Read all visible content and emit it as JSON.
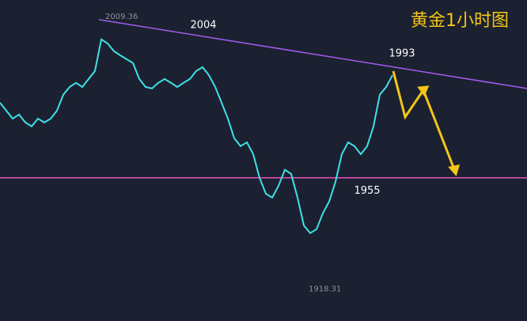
{
  "chart_data": {
    "type": "line",
    "title": "黄金1小时图",
    "values": [
      1981.3,
      1978.6,
      1975.9,
      1977.3,
      1974.6,
      1973.3,
      1975.9,
      1974.6,
      1975.9,
      1978.6,
      1984.0,
      1986.6,
      1988.0,
      1986.6,
      1989.3,
      1992.0,
      2002.7,
      2001.3,
      1998.7,
      1997.3,
      1996.0,
      1994.7,
      1989.3,
      1986.6,
      1986.1,
      1988.0,
      1989.3,
      1988.0,
      1986.6,
      1988.0,
      1989.3,
      1992.0,
      1993.3,
      1990.6,
      1986.6,
      1981.3,
      1975.9,
      1969.3,
      1966.6,
      1967.9,
      1963.9,
      1955.9,
      1950.5,
      1949.2,
      1953.2,
      1958.6,
      1957.2,
      1949.2,
      1939.8,
      1937.2,
      1938.5,
      1943.9,
      1947.9,
      1954.6,
      1963.9,
      1967.9,
      1966.6,
      1963.9,
      1966.6,
      1973.3,
      1984.0,
      1986.6,
      1990.6
    ],
    "color": "#3fe0e8",
    "ylim": [
      1907.5,
      2016
    ],
    "trendline": [
      2009.36,
      1986.1
    ],
    "trendline_color": "#a25cf0",
    "support": 1955.9,
    "support_color": "#e94fc0",
    "annotations": [
      {
        "label": "2009.36",
        "value": 2009.36
      },
      {
        "label": "2004",
        "value": 2004
      },
      {
        "label": "1993",
        "value": 1993
      },
      {
        "label": "1955",
        "value": 1955
      },
      {
        "label": "1918.31",
        "value": 1918.31
      }
    ]
  }
}
